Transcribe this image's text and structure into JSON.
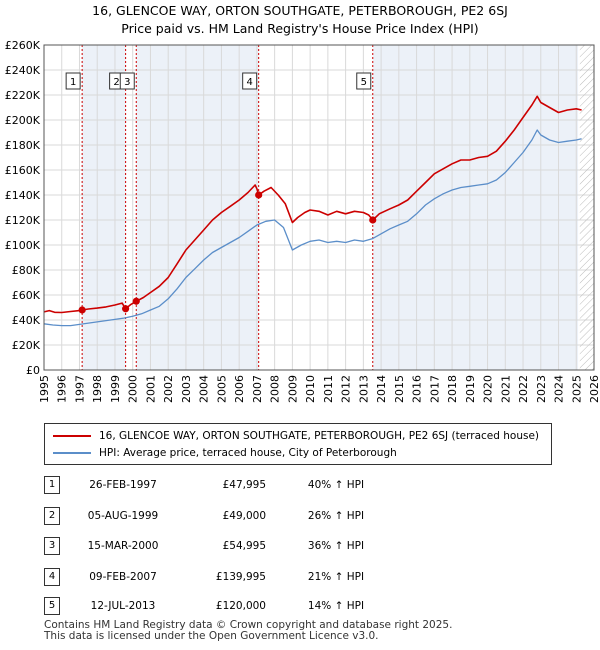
{
  "title_line1": "16, GLENCOE WAY, ORTON SOUTHGATE, PETERBOROUGH, PE2 6SJ",
  "title_line2": "Price paid vs. HM Land Registry's House Price Index (HPI)",
  "colors": {
    "property": "#cc0000",
    "hpi": "#5b8ec9",
    "shade": "#dce6f2",
    "marker_line": "#cc0000",
    "grid": "#d9d9d9"
  },
  "chart_data": {
    "type": "line",
    "title": "Price paid vs. HM Land Registry's House Price Index (HPI)",
    "xlabel": "",
    "ylabel": "",
    "xlim": [
      1995,
      2026
    ],
    "ylim": [
      0,
      260000
    ],
    "y_ticks": [
      0,
      20000,
      40000,
      60000,
      80000,
      100000,
      120000,
      140000,
      160000,
      180000,
      200000,
      220000,
      240000,
      260000
    ],
    "y_tick_labels": [
      "£0",
      "£20K",
      "£40K",
      "£60K",
      "£80K",
      "£100K",
      "£120K",
      "£140K",
      "£160K",
      "£180K",
      "£200K",
      "£220K",
      "£240K",
      "£260K"
    ],
    "x_ticks": [
      1995,
      1996,
      1997,
      1998,
      1999,
      2000,
      2001,
      2002,
      2003,
      2004,
      2005,
      2006,
      2007,
      2008,
      2009,
      2010,
      2011,
      2012,
      2013,
      2014,
      2015,
      2016,
      2017,
      2018,
      2019,
      2020,
      2021,
      2022,
      2023,
      2024,
      2025,
      2026
    ],
    "x_tick_labels": [
      "1995",
      "1996",
      "1997",
      "1998",
      "1999",
      "2000",
      "2001",
      "2002",
      "2003",
      "2004",
      "2005",
      "2006",
      "2007",
      "2008",
      "2009",
      "2010",
      "2011",
      "2012",
      "2013",
      "2014",
      "2015",
      "2016",
      "2017",
      "2018",
      "2019",
      "2020",
      "2021",
      "2022",
      "2023",
      "2024",
      "2025",
      "2026"
    ],
    "grid": true,
    "shaded_periods": [
      [
        1997.15,
        1999.6
      ],
      [
        2000.2,
        2007.1
      ],
      [
        2013.53,
        2025.1
      ]
    ],
    "future_region_start": 2025.2,
    "series": [
      {
        "name": "16, GLENCOE WAY, ORTON SOUTHGATE, PETERBOROUGH, PE2 6SJ (terraced house)",
        "key": "property",
        "points": [
          [
            1995.0,
            46500
          ],
          [
            1995.3,
            47500
          ],
          [
            1995.6,
            46200
          ],
          [
            1996.0,
            46000
          ],
          [
            1996.5,
            46800
          ],
          [
            1997.0,
            47500
          ],
          [
            1997.15,
            47995
          ],
          [
            1997.5,
            48800
          ],
          [
            1998.0,
            49500
          ],
          [
            1998.5,
            50500
          ],
          [
            1999.0,
            52000
          ],
          [
            1999.4,
            53500
          ],
          [
            1999.6,
            49000
          ],
          [
            1999.9,
            52500
          ],
          [
            2000.2,
            54995
          ],
          [
            2000.6,
            58000
          ],
          [
            2001.0,
            62000
          ],
          [
            2001.5,
            67000
          ],
          [
            2002.0,
            74000
          ],
          [
            2002.5,
            85000
          ],
          [
            2003.0,
            96000
          ],
          [
            2003.5,
            104000
          ],
          [
            2004.0,
            112000
          ],
          [
            2004.5,
            120000
          ],
          [
            2005.0,
            126000
          ],
          [
            2005.5,
            131000
          ],
          [
            2006.0,
            136000
          ],
          [
            2006.5,
            142000
          ],
          [
            2006.9,
            148000
          ],
          [
            2007.0,
            145000
          ],
          [
            2007.1,
            139995
          ],
          [
            2007.4,
            143000
          ],
          [
            2007.8,
            146000
          ],
          [
            2008.2,
            140000
          ],
          [
            2008.6,
            133000
          ],
          [
            2009.0,
            118000
          ],
          [
            2009.3,
            122000
          ],
          [
            2009.7,
            126000
          ],
          [
            2010.0,
            128000
          ],
          [
            2010.5,
            127000
          ],
          [
            2011.0,
            124000
          ],
          [
            2011.5,
            127000
          ],
          [
            2012.0,
            125000
          ],
          [
            2012.5,
            127000
          ],
          [
            2013.0,
            126000
          ],
          [
            2013.3,
            124000
          ],
          [
            2013.53,
            120000
          ],
          [
            2013.9,
            125000
          ],
          [
            2014.5,
            129000
          ],
          [
            2015.0,
            132000
          ],
          [
            2015.5,
            136000
          ],
          [
            2016.0,
            143000
          ],
          [
            2016.5,
            150000
          ],
          [
            2017.0,
            157000
          ],
          [
            2017.5,
            161000
          ],
          [
            2018.0,
            165000
          ],
          [
            2018.5,
            168000
          ],
          [
            2019.0,
            168000
          ],
          [
            2019.5,
            170000
          ],
          [
            2020.0,
            171000
          ],
          [
            2020.5,
            175000
          ],
          [
            2021.0,
            183000
          ],
          [
            2021.5,
            192000
          ],
          [
            2022.0,
            202000
          ],
          [
            2022.5,
            212000
          ],
          [
            2022.8,
            219000
          ],
          [
            2023.0,
            214000
          ],
          [
            2023.5,
            210000
          ],
          [
            2024.0,
            206000
          ],
          [
            2024.5,
            208000
          ],
          [
            2025.0,
            209000
          ],
          [
            2025.3,
            208000
          ]
        ]
      },
      {
        "name": "HPI: Average price, terraced house, City of Peterborough",
        "key": "hpi",
        "points": [
          [
            1995.0,
            37000
          ],
          [
            1995.5,
            36000
          ],
          [
            1996.0,
            35500
          ],
          [
            1996.5,
            35500
          ],
          [
            1997.0,
            36500
          ],
          [
            1997.5,
            37500
          ],
          [
            1998.0,
            38500
          ],
          [
            1998.5,
            39500
          ],
          [
            1999.0,
            40500
          ],
          [
            1999.5,
            41500
          ],
          [
            2000.0,
            43000
          ],
          [
            2000.5,
            45000
          ],
          [
            2001.0,
            48000
          ],
          [
            2001.5,
            51000
          ],
          [
            2002.0,
            57000
          ],
          [
            2002.5,
            65000
          ],
          [
            2003.0,
            74000
          ],
          [
            2003.5,
            81000
          ],
          [
            2004.0,
            88000
          ],
          [
            2004.5,
            94000
          ],
          [
            2005.0,
            98000
          ],
          [
            2005.5,
            102000
          ],
          [
            2006.0,
            106000
          ],
          [
            2006.5,
            111000
          ],
          [
            2007.0,
            116000
          ],
          [
            2007.5,
            119000
          ],
          [
            2008.0,
            120000
          ],
          [
            2008.5,
            114000
          ],
          [
            2009.0,
            96000
          ],
          [
            2009.5,
            100000
          ],
          [
            2010.0,
            103000
          ],
          [
            2010.5,
            104000
          ],
          [
            2011.0,
            102000
          ],
          [
            2011.5,
            103000
          ],
          [
            2012.0,
            102000
          ],
          [
            2012.5,
            104000
          ],
          [
            2013.0,
            103000
          ],
          [
            2013.5,
            105000
          ],
          [
            2014.0,
            109000
          ],
          [
            2014.5,
            113000
          ],
          [
            2015.0,
            116000
          ],
          [
            2015.5,
            119000
          ],
          [
            2016.0,
            125000
          ],
          [
            2016.5,
            132000
          ],
          [
            2017.0,
            137000
          ],
          [
            2017.5,
            141000
          ],
          [
            2018.0,
            144000
          ],
          [
            2018.5,
            146000
          ],
          [
            2019.0,
            147000
          ],
          [
            2019.5,
            148000
          ],
          [
            2020.0,
            149000
          ],
          [
            2020.5,
            152000
          ],
          [
            2021.0,
            158000
          ],
          [
            2021.5,
            166000
          ],
          [
            2022.0,
            174000
          ],
          [
            2022.5,
            184000
          ],
          [
            2022.8,
            192000
          ],
          [
            2023.0,
            188000
          ],
          [
            2023.5,
            184000
          ],
          [
            2024.0,
            182000
          ],
          [
            2024.5,
            183000
          ],
          [
            2025.0,
            184000
          ],
          [
            2025.3,
            185000
          ]
        ]
      }
    ],
    "sales": [
      {
        "label": "1",
        "x": 1997.15,
        "price": 47995
      },
      {
        "label": "2",
        "x": 1999.6,
        "price": 49000
      },
      {
        "label": "3",
        "x": 2000.2,
        "price": 54995
      },
      {
        "label": "4",
        "x": 2007.1,
        "price": 139995
      },
      {
        "label": "5",
        "x": 2013.53,
        "price": 120000
      }
    ],
    "legend": [
      "16, GLENCOE WAY, ORTON SOUTHGATE, PETERBOROUGH, PE2 6SJ (terraced house)",
      "HPI: Average price, terraced house, City of Peterborough"
    ]
  },
  "sales_table": [
    {
      "num": "1",
      "date": "26-FEB-1997",
      "price": "£47,995",
      "hpi": "40% ↑ HPI"
    },
    {
      "num": "2",
      "date": "05-AUG-1999",
      "price": "£49,000",
      "hpi": "26% ↑ HPI"
    },
    {
      "num": "3",
      "date": "15-MAR-2000",
      "price": "£54,995",
      "hpi": "36% ↑ HPI"
    },
    {
      "num": "4",
      "date": "09-FEB-2007",
      "price": "£139,995",
      "hpi": "21% ↑ HPI"
    },
    {
      "num": "5",
      "date": "12-JUL-2013",
      "price": "£120,000",
      "hpi": "14% ↑ HPI"
    }
  ],
  "footer": {
    "line1": "Contains HM Land Registry data © Crown copyright and database right 2025.",
    "line2": "This data is licensed under the Open Government Licence v3.0."
  }
}
